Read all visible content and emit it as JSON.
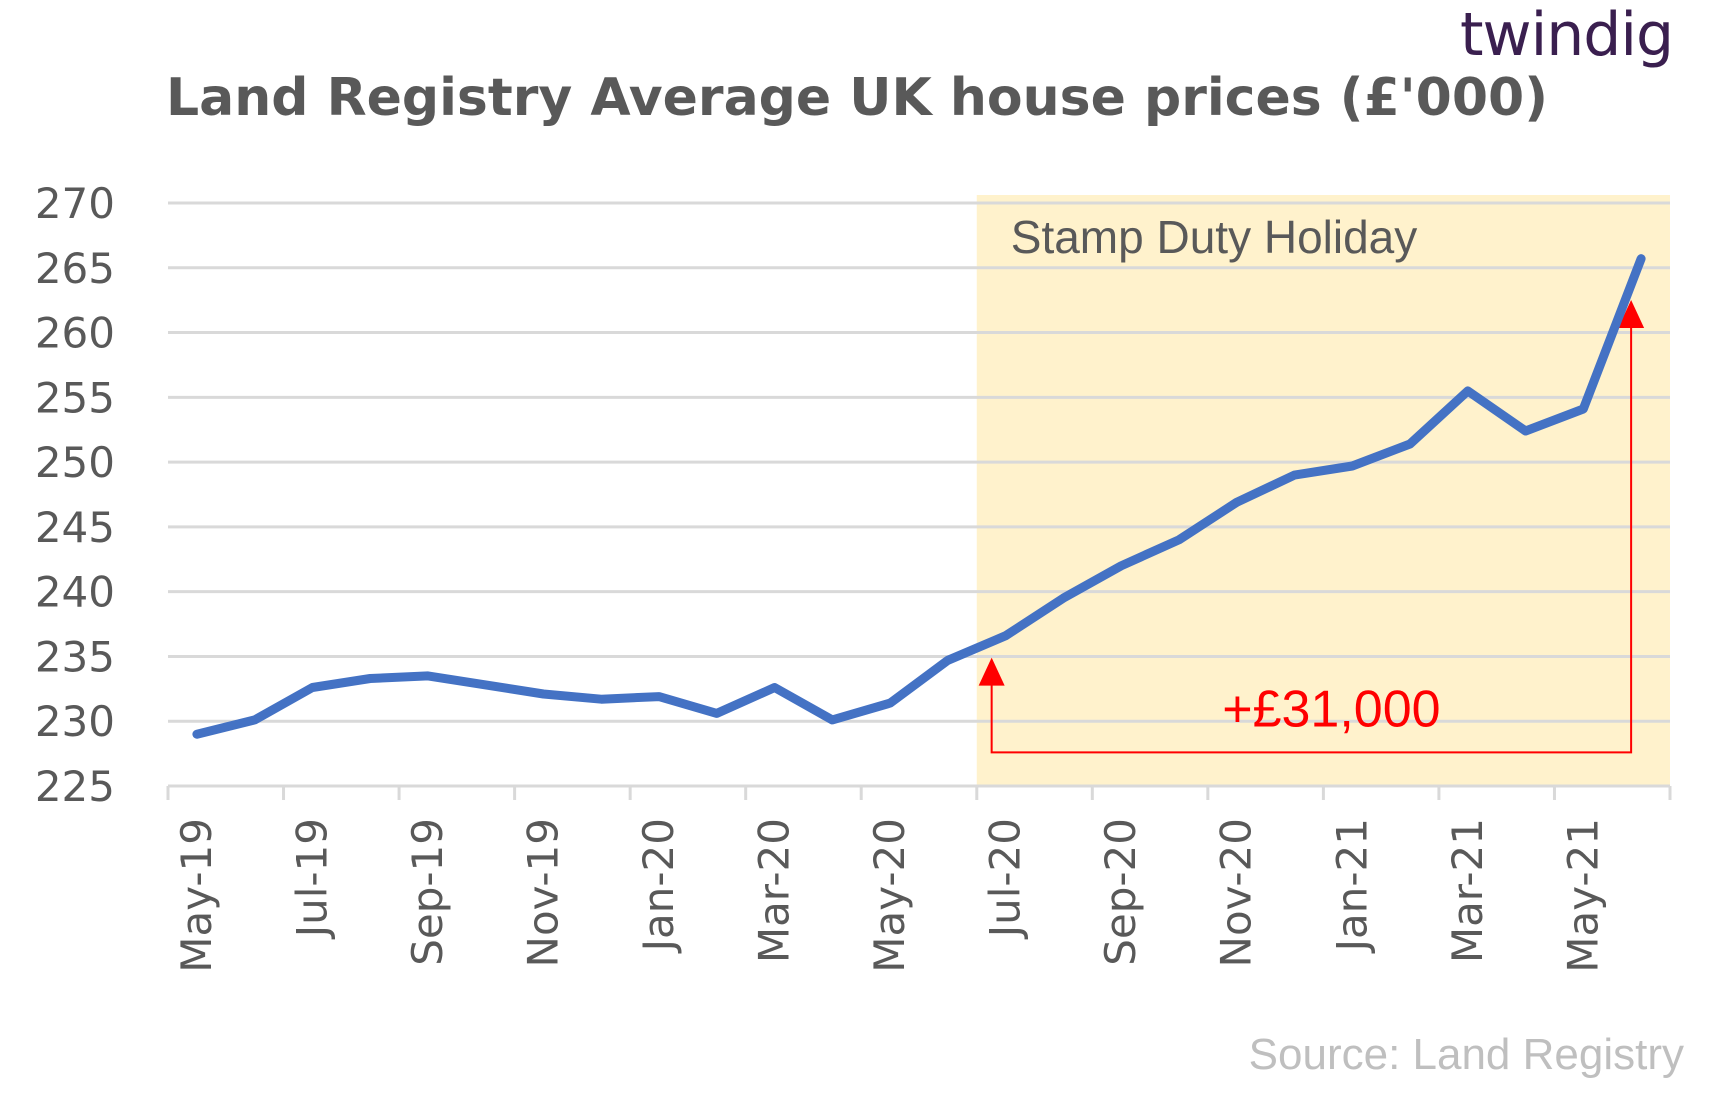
{
  "brand": {
    "logo_text": "twindig"
  },
  "source_text": "Source: Land Registry",
  "chart_data": {
    "type": "line",
    "title": "Land Registry Average UK house prices (£'000)",
    "xlabel": "",
    "ylabel": "",
    "ylim": [
      225,
      270
    ],
    "yticks": [
      225,
      230,
      235,
      240,
      245,
      250,
      255,
      260,
      265,
      270
    ],
    "grid": true,
    "x": [
      "May-19",
      "Jun-19",
      "Jul-19",
      "Aug-19",
      "Sep-19",
      "Oct-19",
      "Nov-19",
      "Dec-19",
      "Jan-20",
      "Feb-20",
      "Mar-20",
      "Apr-20",
      "May-20",
      "Jun-20",
      "Jul-20",
      "Aug-20",
      "Sep-20",
      "Oct-20",
      "Nov-20",
      "Dec-20",
      "Jan-21",
      "Feb-21",
      "Mar-21",
      "Apr-21",
      "May-21",
      "Jun-21"
    ],
    "xtick_labels": [
      "May-19",
      "Jul-19",
      "Sep-19",
      "Nov-19",
      "Jan-20",
      "Mar-20",
      "May-20",
      "Jul-20",
      "Sep-20",
      "Nov-20",
      "Jan-21",
      "Mar-21",
      "May-21"
    ],
    "series": [
      {
        "color": "#4472c4",
        "values": [
          229.0,
          230.1,
          232.6,
          233.3,
          233.5,
          232.8,
          232.1,
          231.7,
          231.9,
          230.6,
          232.6,
          230.1,
          231.4,
          234.7,
          236.6,
          239.5,
          242.0,
          244.0,
          246.9,
          249.0,
          249.7,
          251.4,
          255.5,
          252.4,
          254.1,
          265.7
        ]
      }
    ],
    "shaded_region": {
      "label": "Stamp Duty Holiday",
      "start": "Jul-20",
      "end": "Jun-21",
      "color": "#fff2cc"
    },
    "annotation": {
      "text": "+£31,000",
      "from": "Jul-20",
      "to": "Jun-21",
      "color": "#ff0000"
    }
  }
}
